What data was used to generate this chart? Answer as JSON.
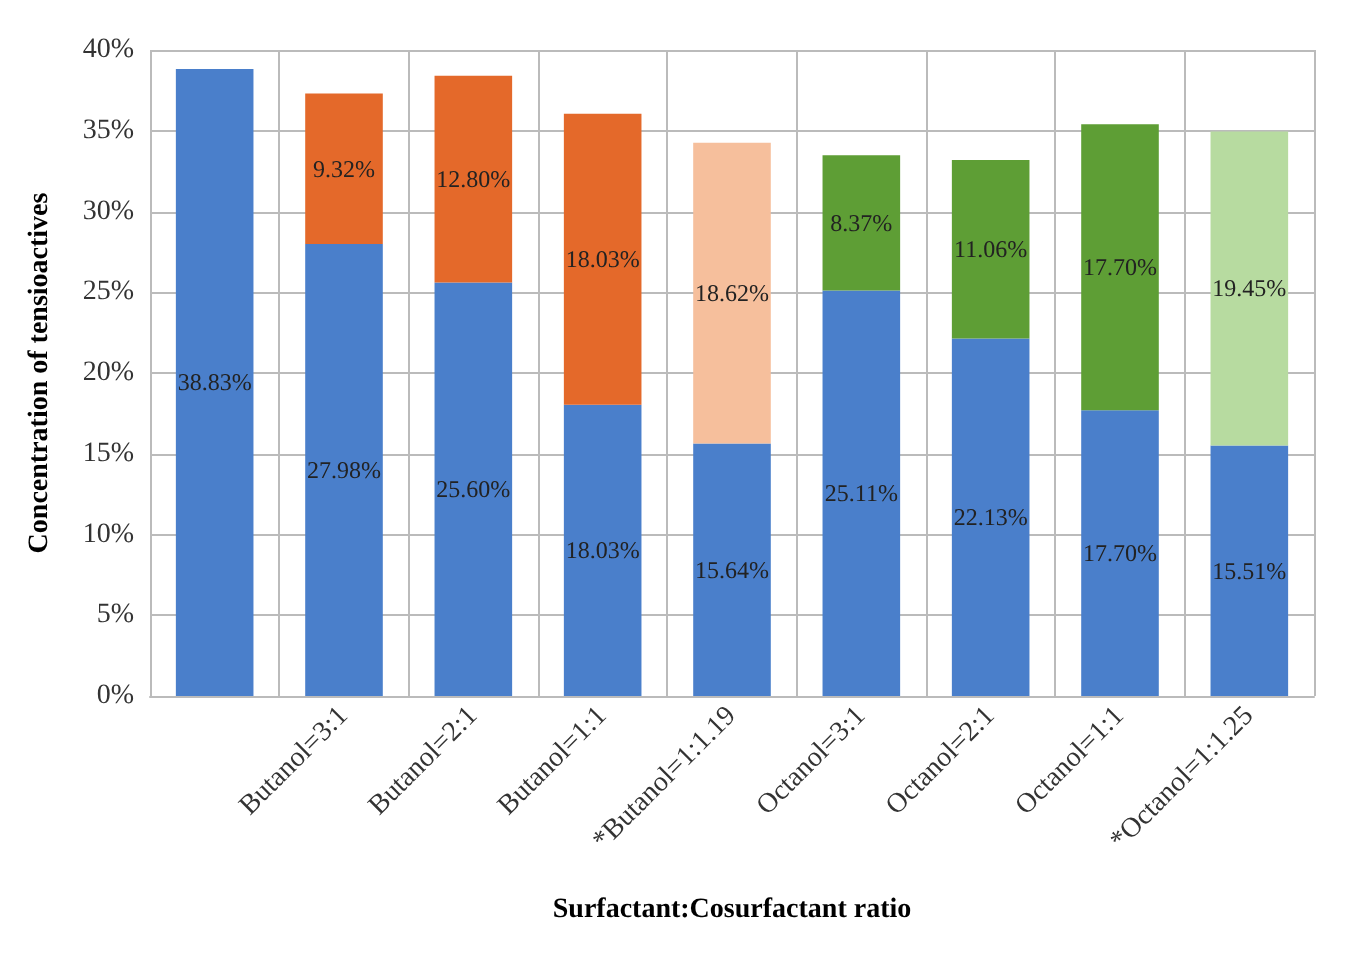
{
  "chart_data": {
    "type": "bar",
    "stacked": true,
    "xlabel": "Surfactant:Cosurfactant ratio",
    "ylabel": "Concentration of tensioactives",
    "categories": [
      null,
      "Butanol=3:1",
      "Butanol=2:1",
      "Butanol=1:1",
      "*Butanol=1:1.19",
      "Octanol=3:1",
      "Octanol=2:1",
      "Octanol=1:1",
      "*Octanol=1:1.25"
    ],
    "series": [
      {
        "color": "#4a7fcb",
        "values": [
          38.83,
          27.98,
          25.6,
          18.03,
          15.64,
          25.11,
          22.13,
          17.7,
          15.51
        ],
        "value_labels": [
          "38.83%",
          "27.98%",
          "25.60%",
          "18.03%",
          "15.64%",
          "25.11%",
          "22.13%",
          "17.70%",
          "15.51%"
        ]
      },
      {
        "colors": [
          null,
          "#e4692a",
          "#e4692a",
          "#e4692a",
          "#f6bf9c",
          "#5e9e35",
          "#5e9e35",
          "#5e9e35",
          "#b7dba0"
        ],
        "values": [
          null,
          9.32,
          12.8,
          18.03,
          18.62,
          8.37,
          11.06,
          17.7,
          19.45
        ],
        "value_labels": [
          null,
          "9.32%",
          "12.80%",
          "18.03%",
          "18.62%",
          "8.37%",
          "11.06%",
          "17.70%",
          "19.45%"
        ]
      }
    ],
    "ylim": [
      0,
      40
    ],
    "yticks": [
      {
        "value": 0,
        "label": "0%"
      },
      {
        "value": 5,
        "label": "5%"
      },
      {
        "value": 10,
        "label": "10%"
      },
      {
        "value": 15,
        "label": "15%"
      },
      {
        "value": 20,
        "label": "20%"
      },
      {
        "value": 25,
        "label": "25%"
      },
      {
        "value": 30,
        "label": "30%"
      },
      {
        "value": 35,
        "label": "35%"
      },
      {
        "value": 40,
        "label": "40%"
      }
    ],
    "grid": true
  }
}
